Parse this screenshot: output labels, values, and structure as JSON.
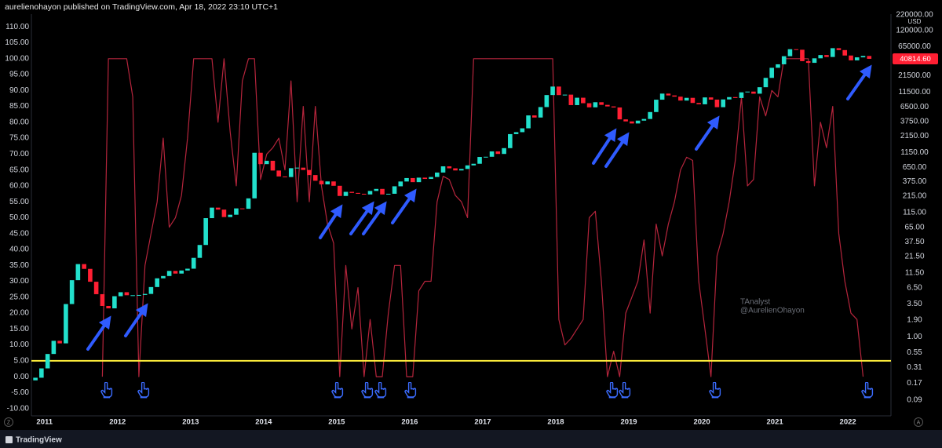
{
  "header": "aurelienohayon published on TradingView.com, Apr 18, 2022 23:10 UTC+1",
  "footer": "TradingView",
  "corner_buttons": [
    "Z",
    "A"
  ],
  "watermark": [
    "TAnalyst",
    "@AurelienOhayon"
  ],
  "chart_data": {
    "type": "candlestick",
    "y2_unit": "USD",
    "xlim": [
      2010.82,
      2022.59
    ],
    "xticks": [
      2011,
      2012,
      2013,
      2014,
      2015,
      2016,
      2017,
      2018,
      2019,
      2020,
      2021,
      2022
    ],
    "ylim": [
      -12.3,
      114
    ],
    "yticks": [
      {
        "value": 110,
        "label": "110.00"
      },
      {
        "value": 105,
        "label": "105.00"
      },
      {
        "value": 100,
        "label": "100.00"
      },
      {
        "value": 95,
        "label": "95.00"
      },
      {
        "value": 90,
        "label": "90.00"
      },
      {
        "value": 85,
        "label": "85.00"
      },
      {
        "value": 80,
        "label": "80.00"
      },
      {
        "value": 75,
        "label": "75.00"
      },
      {
        "value": 70,
        "label": "70.00"
      },
      {
        "value": 65,
        "label": "65.00"
      },
      {
        "value": 60,
        "label": "60.00"
      },
      {
        "value": 55,
        "label": "55.00"
      },
      {
        "value": 50,
        "label": "50.00"
      },
      {
        "value": 45,
        "label": "45.00"
      },
      {
        "value": 40,
        "label": "40.00"
      },
      {
        "value": 35,
        "label": "35.00"
      },
      {
        "value": 30,
        "label": "30.00"
      },
      {
        "value": 25,
        "label": "25.00"
      },
      {
        "value": 20,
        "label": "20.00"
      },
      {
        "value": 15,
        "label": "15.00"
      },
      {
        "value": 10,
        "label": "10.00"
      },
      {
        "value": 5,
        "label": "5.00"
      },
      {
        "value": 0,
        "label": "0.00"
      },
      {
        "value": -5,
        "label": "-5.00"
      },
      {
        "value": -10,
        "label": "-10.00"
      }
    ],
    "y2lim": [
      0.049,
      225000
    ],
    "y2log": true,
    "y2ticks": [
      {
        "value": 220000,
        "label": "220000.00"
      },
      {
        "value": 120000,
        "label": "120000.00"
      },
      {
        "value": 65000,
        "label": "65000.00"
      },
      {
        "value": 21500,
        "label": "21500.00"
      },
      {
        "value": 11500,
        "label": "11500.00"
      },
      {
        "value": 6500,
        "label": "6500.00"
      },
      {
        "value": 3750,
        "label": "3750.00"
      },
      {
        "value": 2150,
        "label": "2150.00"
      },
      {
        "value": 1150,
        "label": "1150.00"
      },
      {
        "value": 650,
        "label": "650.00"
      },
      {
        "value": 375,
        "label": "375.00"
      },
      {
        "value": 215,
        "label": "215.00"
      },
      {
        "value": 115,
        "label": "115.00"
      },
      {
        "value": 65,
        "label": "65.00"
      },
      {
        "value": 37.5,
        "label": "37.50"
      },
      {
        "value": 21.5,
        "label": "21.50"
      },
      {
        "value": 11.5,
        "label": "11.50"
      },
      {
        "value": 6.5,
        "label": "6.50"
      },
      {
        "value": 3.5,
        "label": "3.50"
      },
      {
        "value": 1.9,
        "label": "1.90"
      },
      {
        "value": 1,
        "label": "1.00"
      },
      {
        "value": 0.55,
        "label": "0.55"
      },
      {
        "value": 0.31,
        "label": "0.31"
      },
      {
        "value": 0.17,
        "label": "0.17"
      },
      {
        "value": 0.09,
        "label": "0.09"
      }
    ],
    "up_color": "#22e0cc",
    "down_color": "#ff1f33",
    "x": [
      2010.875,
      2010.958,
      2011.042,
      2011.125,
      2011.208,
      2011.292,
      2011.375,
      2011.458,
      2011.542,
      2011.625,
      2011.708,
      2011.792,
      2011.875,
      2011.958,
      2012.042,
      2012.125,
      2012.208,
      2012.292,
      2012.375,
      2012.458,
      2012.542,
      2012.625,
      2012.708,
      2012.792,
      2012.875,
      2012.958,
      2013.042,
      2013.125,
      2013.208,
      2013.292,
      2013.375,
      2013.458,
      2013.542,
      2013.625,
      2013.708,
      2013.792,
      2013.875,
      2013.958,
      2014.042,
      2014.125,
      2014.208,
      2014.292,
      2014.375,
      2014.458,
      2014.542,
      2014.625,
      2014.708,
      2014.792,
      2014.875,
      2014.958,
      2015.042,
      2015.125,
      2015.208,
      2015.292,
      2015.375,
      2015.458,
      2015.542,
      2015.625,
      2015.708,
      2015.792,
      2015.875,
      2015.958,
      2016.042,
      2016.125,
      2016.208,
      2016.292,
      2016.375,
      2016.458,
      2016.542,
      2016.625,
      2016.708,
      2016.792,
      2016.875,
      2016.958,
      2017.042,
      2017.125,
      2017.208,
      2017.292,
      2017.375,
      2017.458,
      2017.542,
      2017.625,
      2017.708,
      2017.792,
      2017.875,
      2017.958,
      2018.042,
      2018.125,
      2018.208,
      2018.292,
      2018.375,
      2018.458,
      2018.542,
      2018.625,
      2018.708,
      2018.792,
      2018.875,
      2018.958,
      2019.042,
      2019.125,
      2019.208,
      2019.292,
      2019.375,
      2019.458,
      2019.542,
      2019.625,
      2019.708,
      2019.792,
      2019.875,
      2019.958,
      2020.042,
      2020.125,
      2020.208,
      2020.292,
      2020.375,
      2020.458,
      2020.542,
      2020.625,
      2020.708,
      2020.792,
      2020.875,
      2020.958,
      2021.042,
      2021.125,
      2021.208,
      2021.292,
      2021.375,
      2021.458,
      2021.542,
      2021.625,
      2021.708,
      2021.792,
      2021.875,
      2021.958,
      2022.042,
      2022.125,
      2022.208,
      2022.292
    ],
    "open": [
      0.19,
      0.21,
      0.3,
      0.52,
      0.86,
      0.78,
      3.5,
      8.7,
      16.1,
      13.4,
      8.2,
      5.1,
      3.25,
      2.97,
      4.72,
      5.5,
      4.9,
      4.9,
      4.95,
      5.15,
      6.7,
      9.35,
      10.2,
      12.4,
      11.2,
      12.6,
      13.5,
      20.4,
      33.4,
      93,
      139,
      129,
      97,
      106,
      135,
      133,
      198,
      1129,
      732,
      832,
      573,
      457,
      447,
      627,
      640,
      586,
      482,
      388,
      338,
      378,
      320,
      217,
      254,
      244,
      236,
      230,
      263,
      284,
      230,
      236,
      314,
      377,
      430,
      368,
      437,
      416,
      448,
      531,
      673,
      624,
      575,
      609,
      698,
      742,
      963,
      970,
      1190,
      1080,
      1348,
      2303,
      2480,
      2875,
      4703,
      4339,
      6468,
      10233,
      14156,
      10221,
      10397,
      6973,
      9240,
      7494,
      6404,
      7780,
      7037,
      6625,
      6371,
      4041,
      3742,
      3457,
      3854,
      4105,
      5350,
      8574,
      10817,
      10085,
      9630,
      8293,
      9199,
      7569,
      7193,
      9350,
      8599,
      6439,
      8658,
      9462,
      9138,
      11351,
      11681,
      10779,
      13804,
      19715,
      28990,
      33114,
      45137,
      58918,
      57750,
      37332,
      35040,
      41626,
      47166,
      43790,
      61318,
      57005,
      46306,
      38483,
      43193,
      45538
    ],
    "close": [
      0.21,
      0.3,
      0.52,
      0.86,
      0.78,
      3.5,
      8.7,
      16.1,
      13.4,
      8.2,
      5.1,
      3.25,
      2.97,
      4.72,
      5.5,
      4.9,
      4.9,
      4.95,
      5.15,
      6.7,
      9.35,
      10.2,
      12.4,
      11.2,
      12.6,
      13.5,
      20.4,
      33.4,
      93,
      139,
      129,
      97,
      106,
      135,
      133,
      198,
      1129,
      732,
      832,
      573,
      457,
      447,
      627,
      640,
      586,
      482,
      388,
      338,
      378,
      320,
      217,
      254,
      244,
      236,
      230,
      263,
      284,
      230,
      236,
      314,
      377,
      430,
      368,
      437,
      416,
      448,
      531,
      673,
      624,
      575,
      609,
      698,
      742,
      963,
      970,
      1190,
      1080,
      1348,
      2303,
      2480,
      2875,
      4703,
      4339,
      6468,
      10233,
      14156,
      10221,
      10397,
      6973,
      9240,
      7494,
      6404,
      7780,
      7037,
      6625,
      6371,
      4041,
      3742,
      3457,
      3854,
      4105,
      5350,
      8574,
      10817,
      10085,
      9630,
      8293,
      9199,
      7569,
      7193,
      9350,
      8599,
      6439,
      8658,
      9462,
      9138,
      11351,
      11681,
      10779,
      13804,
      19715,
      28990,
      33114,
      45137,
      58918,
      57750,
      37332,
      35040,
      41626,
      47166,
      43790,
      61318,
      57005,
      46306,
      38483,
      43193,
      45538,
      40814.6
    ],
    "last_close_label": "40814.60",
    "oscillator": {
      "color": "#b5253c",
      "axis": "y",
      "values": [
        null,
        null,
        null,
        null,
        null,
        null,
        null,
        null,
        null,
        null,
        null,
        0,
        100,
        100,
        100,
        100,
        88,
        0,
        35,
        45,
        55,
        75,
        47,
        50,
        57,
        75,
        100,
        100,
        100,
        100,
        80,
        100,
        77,
        60,
        93,
        100,
        100,
        62,
        70,
        72,
        75,
        65,
        93,
        55,
        85,
        55,
        85,
        60,
        48,
        42,
        0,
        35,
        15,
        28,
        0,
        18,
        0,
        0,
        20,
        35,
        35,
        0,
        0,
        27,
        30,
        30,
        55,
        63,
        62,
        57,
        55,
        50,
        100,
        100,
        100,
        100,
        100,
        100,
        100,
        100,
        100,
        100,
        100,
        100,
        100,
        100,
        18,
        10,
        12,
        15,
        18,
        50,
        52,
        30,
        0,
        8,
        0,
        20,
        25,
        30,
        43,
        20,
        48,
        38,
        48,
        55,
        65,
        69,
        68,
        30,
        15,
        0,
        38,
        45,
        55,
        68,
        88,
        60,
        62,
        88,
        82,
        90,
        88,
        100,
        100,
        100,
        100,
        100,
        60,
        80,
        72,
        85,
        45,
        30,
        20,
        18,
        0,
        null
      ]
    },
    "reference_line": {
      "value": 5,
      "color": "#ffee3b"
    }
  }
}
